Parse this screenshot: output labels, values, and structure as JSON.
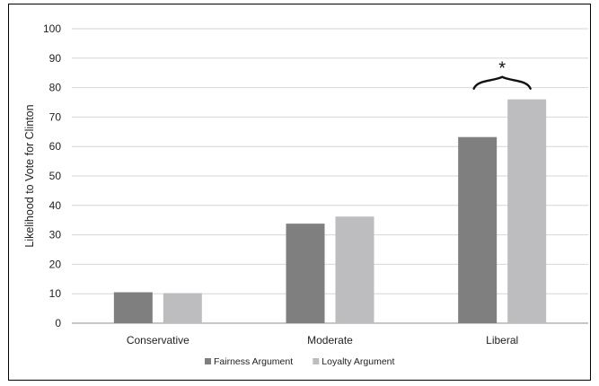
{
  "chart_data": {
    "type": "bar",
    "categories": [
      "Conservative",
      "Moderate",
      "Liberal"
    ],
    "series": [
      {
        "name": "Fairness Argument",
        "values": [
          10.5,
          33.8,
          63.2
        ],
        "color": "#7f7f80"
      },
      {
        "name": "Loyalty Argument",
        "values": [
          10.2,
          36.2,
          76.0
        ],
        "color": "#bdbdbf"
      }
    ],
    "title": "",
    "xlabel": "",
    "ylabel": "Likelihood to Vote for Clinton",
    "ylim": [
      0,
      100
    ],
    "yticks": [
      0,
      10,
      20,
      30,
      40,
      50,
      60,
      70,
      80,
      90,
      100
    ],
    "grid": true,
    "legend_position": "bottom",
    "annotations": [
      {
        "text": "*",
        "category": "Liberal",
        "shape": "brace"
      }
    ]
  }
}
